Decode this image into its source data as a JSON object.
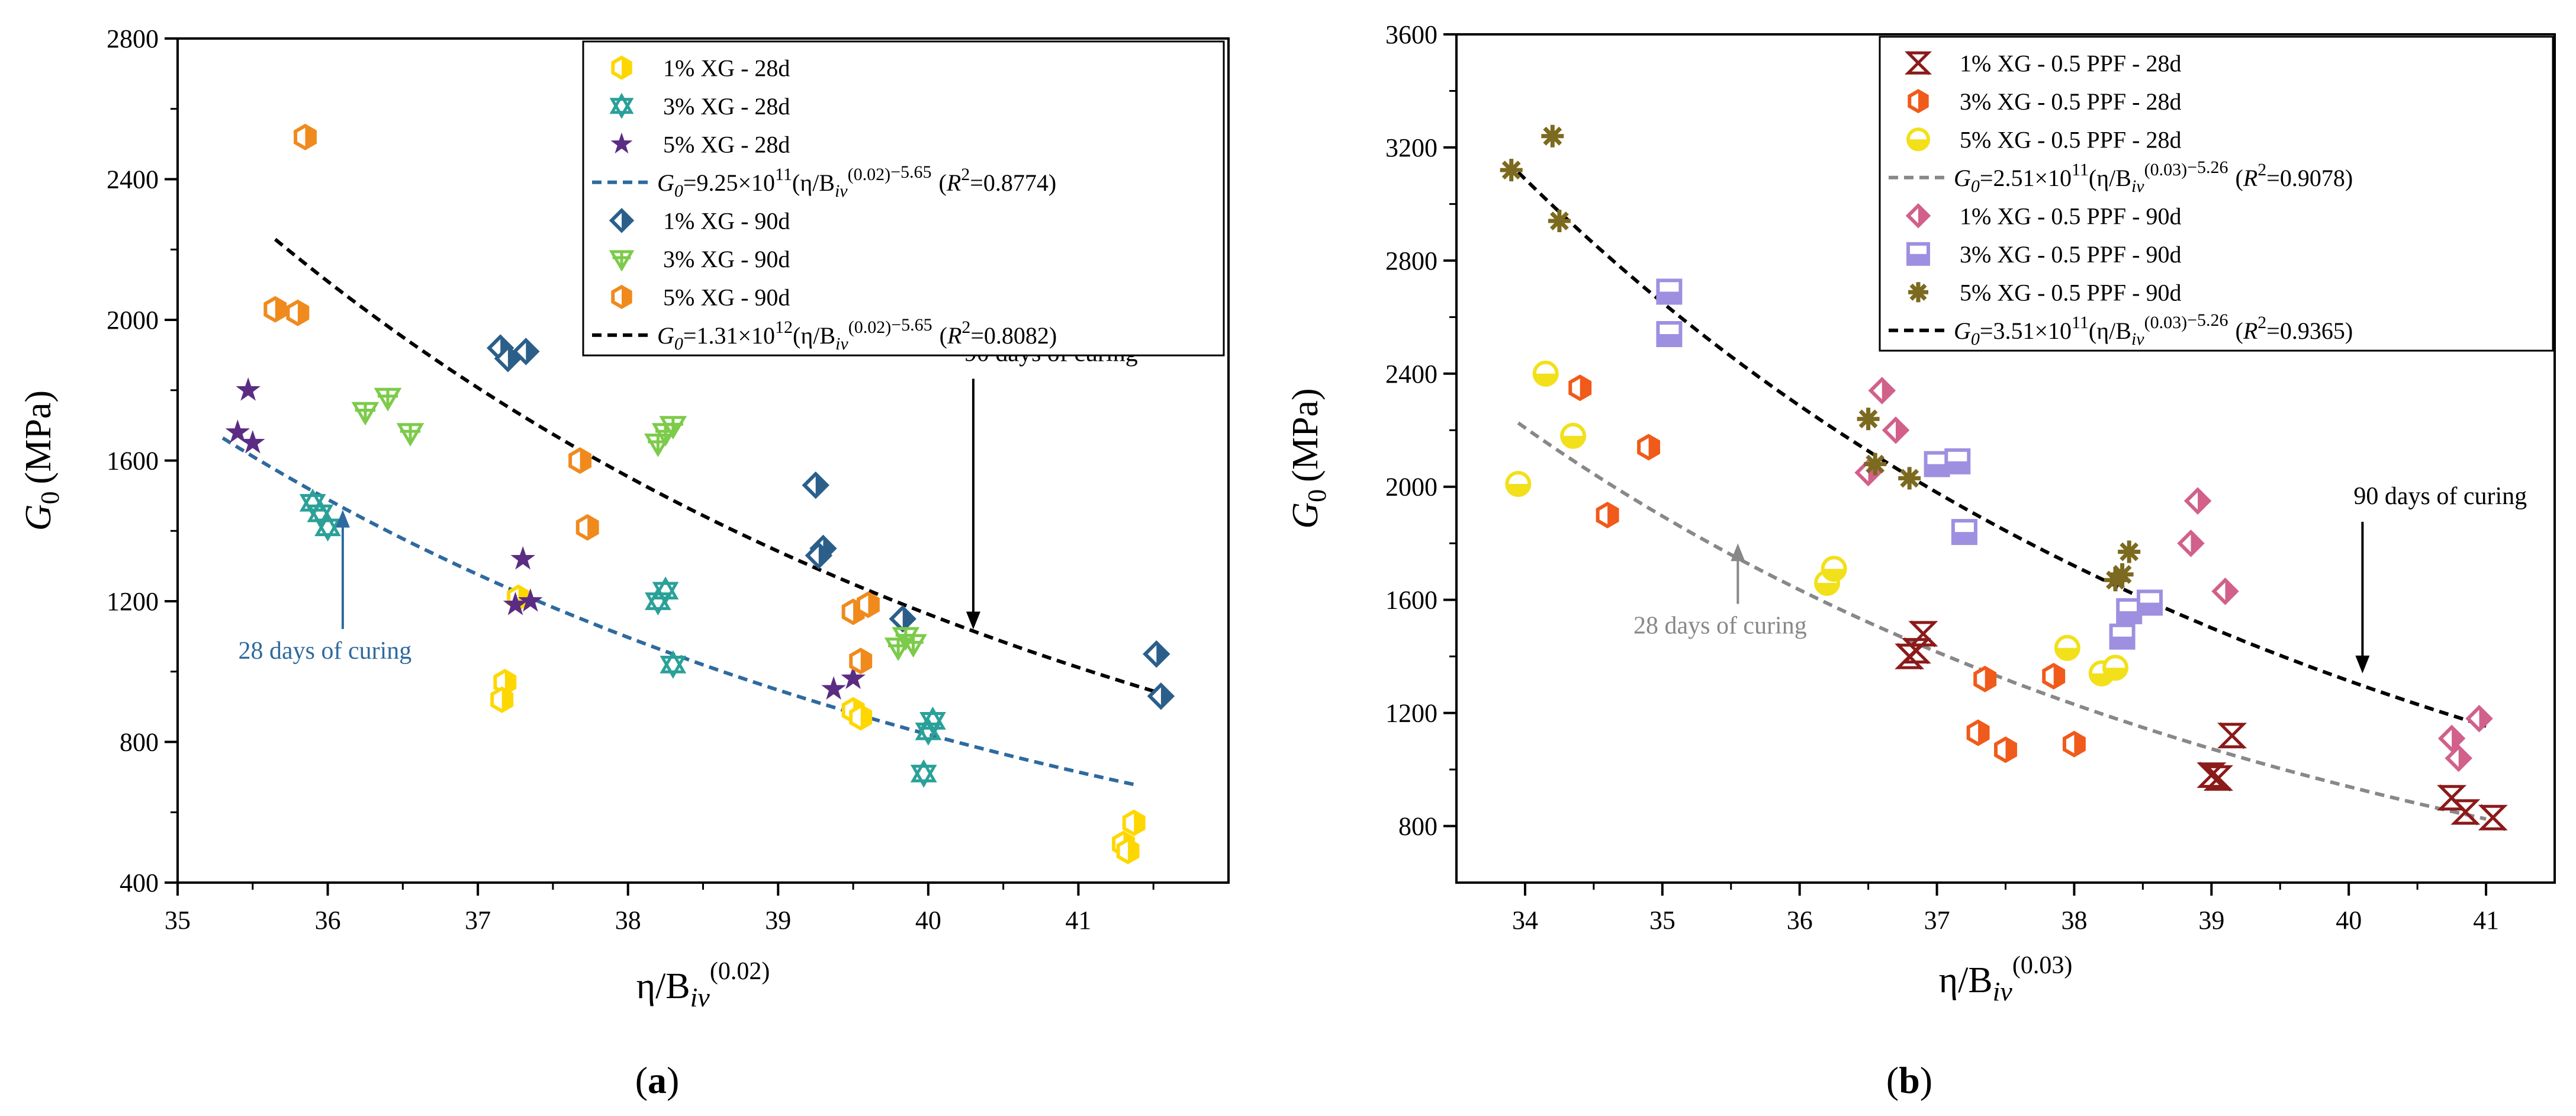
{
  "chart_data": [
    {
      "type": "scatter",
      "panel_label": "(a)",
      "panel_letter": "a",
      "ylabel": "G0 (MPa)",
      "ylabel_main": "G",
      "ylabel_sub": "0",
      "ylabel_unit": "(MPa)",
      "xlabel": "η/Biv^(0.02)",
      "xlabel_main": "η/B",
      "xlabel_sub": "iv",
      "xlabel_sup": "(0.02)",
      "xlim": [
        35,
        42
      ],
      "ylim": [
        400,
        2800
      ],
      "xticks": [
        "35",
        "36",
        "37",
        "38",
        "39",
        "40",
        "41"
      ],
      "yticks": [
        "400",
        "800",
        "1200",
        "1600",
        "2000",
        "2400",
        "2800"
      ],
      "legend_position": "top-right",
      "series": [
        {
          "name": "1% XG - 28d",
          "label": "1% XG - 28d",
          "marker": "hexagon-half",
          "color": "#FFD700",
          "points": [
            [
              37.18,
              970
            ],
            [
              37.16,
              920
            ],
            [
              37.27,
              1210
            ],
            [
              39.5,
              890
            ],
            [
              39.55,
              870
            ],
            [
              41.37,
              570
            ],
            [
              41.3,
              510
            ],
            [
              41.33,
              490
            ]
          ]
        },
        {
          "name": "3% XG - 28d",
          "label": "3% XG - 28d",
          "marker": "star-of-david",
          "color": "#2AA198",
          "points": [
            [
              35.9,
              1480
            ],
            [
              35.95,
              1450
            ],
            [
              36.0,
              1410
            ],
            [
              38.2,
              1200
            ],
            [
              38.25,
              1230
            ],
            [
              38.3,
              1020
            ],
            [
              39.97,
              710
            ],
            [
              40.0,
              830
            ],
            [
              40.03,
              860
            ]
          ]
        },
        {
          "name": "5% XG - 28d",
          "label": "5% XG - 28d",
          "marker": "star",
          "color": "#5B2C83",
          "points": [
            [
              35.4,
              1680
            ],
            [
              35.47,
              1800
            ],
            [
              35.5,
              1650
            ],
            [
              37.25,
              1190
            ],
            [
              37.3,
              1320
            ],
            [
              37.35,
              1200
            ],
            [
              39.37,
              950
            ],
            [
              39.5,
              980
            ]
          ]
        },
        {
          "name": "1% XG - 90d",
          "label": "1% XG - 90d",
          "marker": "diamond-half",
          "color": "#2B5F8A",
          "points": [
            [
              37.15,
              1920
            ],
            [
              37.2,
              1890
            ],
            [
              37.32,
              1910
            ],
            [
              39.25,
              1530
            ],
            [
              39.3,
              1350
            ],
            [
              39.27,
              1330
            ],
            [
              39.83,
              1150
            ],
            [
              41.52,
              1050
            ],
            [
              41.55,
              930
            ]
          ]
        },
        {
          "name": "3% XG - 90d",
          "label": "3% XG - 90d",
          "marker": "triangle-cross",
          "color": "#7CCB4A",
          "points": [
            [
              36.25,
              1740
            ],
            [
              36.4,
              1780
            ],
            [
              36.55,
              1680
            ],
            [
              38.2,
              1650
            ],
            [
              38.25,
              1680
            ],
            [
              38.3,
              1700
            ],
            [
              39.8,
              1070
            ],
            [
              39.85,
              1100
            ],
            [
              39.9,
              1080
            ]
          ]
        },
        {
          "name": "5% XG - 90d",
          "label": "5% XG - 90d",
          "marker": "hexagon-half",
          "color": "#F08A1D",
          "points": [
            [
              35.85,
              2520
            ],
            [
              35.65,
              2030
            ],
            [
              35.8,
              2020
            ],
            [
              37.68,
              1600
            ],
            [
              37.73,
              1410
            ],
            [
              39.5,
              1170
            ],
            [
              39.6,
              1190
            ],
            [
              39.55,
              1030
            ]
          ]
        }
      ],
      "fits": [
        {
          "label": "G0=9.25×10^11(η/Biv^(0.02))^−5.65 (R^2=0.8774)",
          "coef": 925000000000.0,
          "exponent": -5.65,
          "r2": "0.8774",
          "color": "#2E6A9E",
          "x_range": [
            35.3,
            41.4
          ],
          "g": "G",
          "g_sub": "0",
          "eq_head": "=9.25×10",
          "eq_pow": "11",
          "eq_mid": "(η/B",
          "eq_sub": "iv",
          "eq_sup": "(0.02)",
          "eq_pow2": "−5.65",
          "r_open": "(",
          "r_r": "R",
          "r_pow": "2",
          "r_eq": "=0.8774)"
        },
        {
          "label": "G0=1.31×10^12(η/Biv^(0.02))^−5.65 (R^2=0.8082)",
          "coef": 1310000000000.0,
          "exponent": -5.65,
          "r2": "0.8082",
          "color": "#000000",
          "x_range": [
            35.65,
            41.5
          ],
          "g": "G",
          "g_sub": "0",
          "eq_head": "=1.31×10",
          "eq_pow": "12",
          "eq_mid": "(η/B",
          "eq_sub": "iv",
          "eq_sup": "(0.02)",
          "eq_pow2": "−5.65",
          "r_open": "(",
          "r_r": "R",
          "r_pow": "2",
          "r_eq": "=0.8082)"
        }
      ],
      "annotations": [
        {
          "text": "90 days of curing",
          "color": "#000000",
          "at": [
            40.3,
            1900
          ],
          "arrow_to": [
            40.3,
            1120
          ]
        },
        {
          "text": "28 days of curing",
          "color": "#2E6A9E",
          "at": [
            36.1,
            1020
          ],
          "arrow_to": [
            36.1,
            1460
          ]
        }
      ]
    },
    {
      "type": "scatter",
      "panel_label": "(b)",
      "panel_letter": "b",
      "ylabel": "G0 (MPa)",
      "ylabel_main": "G",
      "ylabel_sub": "0",
      "ylabel_unit": "(MPa)",
      "xlabel": "η/Biv^(0.03)",
      "xlabel_main": "η/B",
      "xlabel_sub": "iv",
      "xlabel_sup": "(0.03)",
      "xlim": [
        33.5,
        41.5
      ],
      "ylim": [
        600,
        3600
      ],
      "xticks": [
        "34",
        "35",
        "36",
        "37",
        "38",
        "39",
        "40",
        "41"
      ],
      "yticks": [
        "800",
        "1200",
        "1600",
        "2000",
        "2400",
        "2800",
        "3200",
        "3600"
      ],
      "legend_position": "top-right",
      "series": [
        {
          "name": "1% XG - 0.5 PPF - 28d",
          "label": "1% XG - 0.5 PPF - 28d",
          "marker": "hourglass-x",
          "color": "#8B1A1A",
          "points": [
            [
              36.8,
              1400
            ],
            [
              36.85,
              1420
            ],
            [
              36.9,
              1480
            ],
            [
              39.0,
              980
            ],
            [
              39.05,
              970
            ],
            [
              39.15,
              1120
            ],
            [
              40.75,
              900
            ],
            [
              40.85,
              850
            ],
            [
              41.05,
              830
            ]
          ]
        },
        {
          "name": "3% XG - 0.5 PPF - 28d",
          "label": "3% XG - 0.5 PPF - 28d",
          "marker": "hexagon-half",
          "color": "#F05A1A",
          "points": [
            [
              34.4,
              2350
            ],
            [
              34.6,
              1900
            ],
            [
              34.9,
              2140
            ],
            [
              37.35,
              1320
            ],
            [
              37.3,
              1130
            ],
            [
              37.5,
              1070
            ],
            [
              37.85,
              1330
            ],
            [
              38.0,
              1090
            ]
          ]
        },
        {
          "name": "5% XG - 0.5 PPF - 28d",
          "label": "5% XG - 0.5 PPF - 28d",
          "marker": "circle-half",
          "color": "#F2E01A",
          "points": [
            [
              33.95,
              2010
            ],
            [
              34.15,
              2400
            ],
            [
              34.35,
              2180
            ],
            [
              36.2,
              1660
            ],
            [
              36.25,
              1710
            ],
            [
              37.95,
              1430
            ],
            [
              38.2,
              1340
            ],
            [
              38.3,
              1360
            ]
          ]
        },
        {
          "name": "1% XG - 0.5 PPF - 90d",
          "label": "1% XG - 0.5 PPF - 90d",
          "marker": "diamond-half",
          "color": "#D1608A",
          "points": [
            [
              36.5,
              2050
            ],
            [
              36.6,
              2340
            ],
            [
              36.7,
              2200
            ],
            [
              38.85,
              1800
            ],
            [
              38.9,
              1950
            ],
            [
              39.1,
              1630
            ],
            [
              40.75,
              1110
            ],
            [
              40.8,
              1040
            ],
            [
              40.95,
              1180
            ]
          ]
        },
        {
          "name": "3% XG - 0.5 PPF - 90d",
          "label": "3% XG - 0.5 PPF - 90d",
          "marker": "square-half",
          "color": "#9F8FE0",
          "points": [
            [
              35.05,
              2690
            ],
            [
              35.05,
              2540
            ],
            [
              37.0,
              2080
            ],
            [
              37.15,
              2090
            ],
            [
              37.2,
              1840
            ],
            [
              38.35,
              1470
            ],
            [
              38.4,
              1560
            ],
            [
              38.55,
              1590
            ]
          ]
        },
        {
          "name": "5% XG - 0.5 PPF - 90d",
          "label": "5% XG - 0.5 PPF - 90d",
          "marker": "asterisk-x",
          "color": "#7B6A1F",
          "points": [
            [
              33.9,
              3120
            ],
            [
              34.2,
              3240
            ],
            [
              34.25,
              2940
            ],
            [
              36.5,
              2240
            ],
            [
              36.55,
              2080
            ],
            [
              36.8,
              2030
            ],
            [
              38.3,
              1670
            ],
            [
              38.35,
              1690
            ],
            [
              38.4,
              1770
            ]
          ]
        }
      ],
      "fits": [
        {
          "label": "G0=2.51×10^11(η/Biv^(0.03))^−5.26 (R^2=0.9078)",
          "coef": 251000000000.0,
          "exponent": -5.26,
          "r2": "0.9078",
          "color": "#888888",
          "x_range": [
            33.95,
            41.0
          ],
          "g": "G",
          "g_sub": "0",
          "eq_head": "=2.51×10",
          "eq_pow": "11",
          "eq_mid": "(η/B",
          "eq_sub": "iv",
          "eq_sup": "(0.03)",
          "eq_pow2": "−5.26",
          "r_open": "(",
          "r_r": "R",
          "r_pow": "2",
          "r_eq": "=0.9078)"
        },
        {
          "label": "G0=3.51×10^11(η/Biv^(0.03))^−5.26 (R^2=0.9365)",
          "coef": 351000000000.0,
          "exponent": -5.26,
          "r2": "0.9365",
          "color": "#000000",
          "x_range": [
            33.95,
            41.0
          ],
          "g": "G",
          "g_sub": "0",
          "eq_head": "=3.51×10",
          "eq_pow": "11",
          "eq_mid": "(η/B",
          "eq_sub": "iv",
          "eq_sup": "(0.03)",
          "eq_pow2": "−5.26",
          "r_open": "(",
          "r_r": "R",
          "r_pow": "2",
          "r_eq": "=0.9365)"
        }
      ],
      "annotations": [
        {
          "text": "90 days of curing",
          "color": "#000000",
          "at": [
            40.1,
            1960
          ],
          "arrow_to": [
            40.1,
            1340
          ]
        },
        {
          "text": "28 days of curing",
          "color": "#888888",
          "at": [
            35.55,
            1460
          ],
          "arrow_to": [
            35.55,
            1800
          ]
        }
      ]
    }
  ]
}
